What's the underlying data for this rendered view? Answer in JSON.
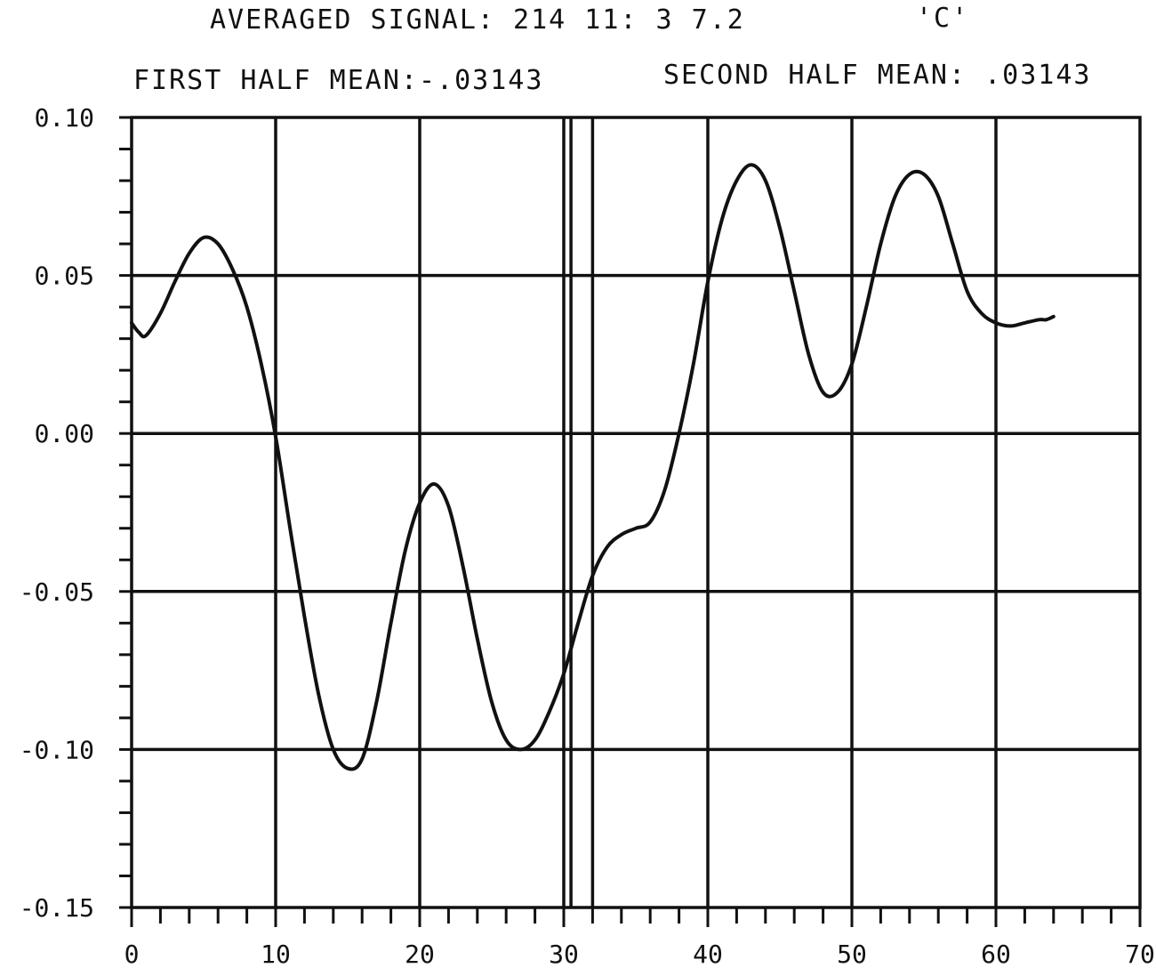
{
  "header": {
    "line1_left": "AVERAGED SIGNAL: 214  11: 3  7.2",
    "line1_right": "'C'",
    "first_half_label": "FIRST HALF MEAN:-.03143",
    "second_half_label": "SECOND HALF MEAN: .03143"
  },
  "chart_data": {
    "type": "line",
    "title": "",
    "xlabel": "",
    "ylabel": "",
    "xlim": [
      0,
      70
    ],
    "ylim": [
      -0.15,
      0.1
    ],
    "grid": true,
    "x_ticks": [
      0,
      10,
      20,
      30,
      40,
      50,
      60,
      70
    ],
    "x_tick_labels": [
      "0",
      "10",
      "20",
      "30",
      "40",
      "50",
      "60",
      "70"
    ],
    "y_ticks": [
      0.1,
      0.05,
      0.0,
      -0.05,
      -0.1,
      -0.15
    ],
    "y_tick_labels": [
      "0.10",
      "0.05",
      "0.00",
      "-0.05",
      "-0.10",
      "-0.15"
    ],
    "divider_x": [
      30.5,
      32
    ],
    "series": [
      {
        "x": [
          0,
          0.5,
          1,
          2,
          3,
          4,
          5,
          6,
          7,
          8,
          9,
          10,
          11,
          12,
          13,
          14,
          15,
          16,
          17,
          18,
          19,
          20,
          21,
          22,
          23,
          24,
          25,
          26,
          27,
          28,
          29,
          30,
          31,
          32,
          33,
          34,
          35,
          36,
          37,
          38,
          39,
          40,
          41,
          42,
          43,
          44,
          45,
          46,
          47,
          48,
          49,
          50,
          51,
          52,
          53,
          54,
          55,
          56,
          57,
          58,
          59,
          60,
          61,
          62,
          63,
          63.5,
          64
        ],
        "values": [
          0.035,
          0.032,
          0.031,
          0.038,
          0.048,
          0.057,
          0.062,
          0.06,
          0.052,
          0.04,
          0.022,
          -0.001,
          -0.03,
          -0.058,
          -0.083,
          -0.1,
          -0.106,
          -0.103,
          -0.085,
          -0.06,
          -0.037,
          -0.022,
          -0.016,
          -0.023,
          -0.042,
          -0.065,
          -0.085,
          -0.097,
          -0.1,
          -0.097,
          -0.088,
          -0.076,
          -0.06,
          -0.045,
          -0.036,
          -0.032,
          -0.03,
          -0.028,
          -0.018,
          0.0,
          0.022,
          0.048,
          0.068,
          0.08,
          0.085,
          0.08,
          0.065,
          0.045,
          0.025,
          0.013,
          0.013,
          0.022,
          0.04,
          0.06,
          0.075,
          0.082,
          0.082,
          0.075,
          0.06,
          0.045,
          0.038,
          0.035,
          0.034,
          0.035,
          0.036,
          0.036,
          0.037
        ]
      }
    ]
  }
}
